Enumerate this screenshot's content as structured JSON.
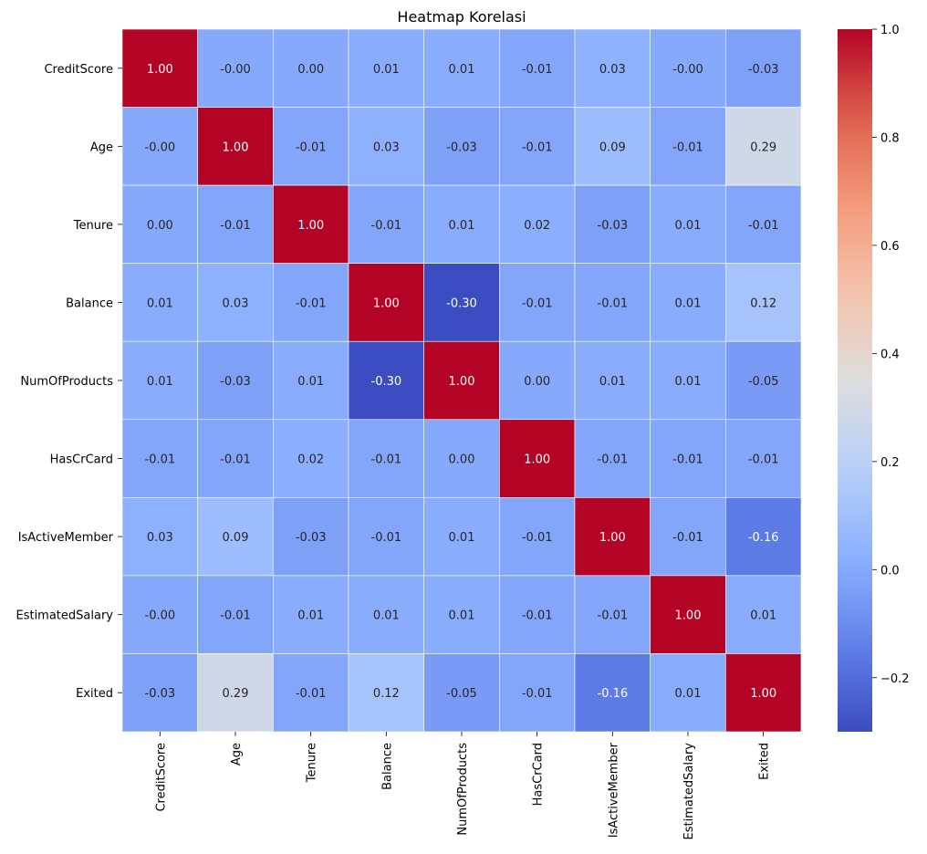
{
  "chart_data": {
    "type": "heatmap",
    "title": "Heatmap Korelasi",
    "colormap": "coolwarm",
    "vmin": -0.3,
    "vmax": 1.0,
    "x_labels": [
      "CreditScore",
      "Age",
      "Tenure",
      "Balance",
      "NumOfProducts",
      "HasCrCard",
      "IsActiveMember",
      "EstimatedSalary",
      "Exited"
    ],
    "y_labels": [
      "CreditScore",
      "Age",
      "Tenure",
      "Balance",
      "NumOfProducts",
      "HasCrCard",
      "IsActiveMember",
      "EstimatedSalary",
      "Exited"
    ],
    "values": [
      [
        1.0,
        -0.0,
        0.0,
        0.01,
        0.01,
        -0.01,
        0.03,
        -0.0,
        -0.03
      ],
      [
        -0.0,
        1.0,
        -0.01,
        0.03,
        -0.03,
        -0.01,
        0.09,
        -0.01,
        0.29
      ],
      [
        0.0,
        -0.01,
        1.0,
        -0.01,
        0.01,
        0.02,
        -0.03,
        0.01,
        -0.01
      ],
      [
        0.01,
        0.03,
        -0.01,
        1.0,
        -0.3,
        -0.01,
        -0.01,
        0.01,
        0.12
      ],
      [
        0.01,
        -0.03,
        0.01,
        -0.3,
        1.0,
        0.0,
        0.01,
        0.01,
        -0.05
      ],
      [
        -0.01,
        -0.01,
        0.02,
        -0.01,
        0.0,
        1.0,
        -0.01,
        -0.01,
        -0.01
      ],
      [
        0.03,
        0.09,
        -0.03,
        -0.01,
        0.01,
        -0.01,
        1.0,
        -0.01,
        -0.16
      ],
      [
        -0.0,
        -0.01,
        0.01,
        0.01,
        0.01,
        -0.01,
        -0.01,
        1.0,
        0.01
      ],
      [
        -0.03,
        0.29,
        -0.01,
        0.12,
        -0.05,
        -0.01,
        -0.16,
        0.01,
        1.0
      ]
    ],
    "value_labels": [
      [
        "1.00",
        "-0.00",
        "0.00",
        "0.01",
        "0.01",
        "-0.01",
        "0.03",
        "-0.00",
        "-0.03"
      ],
      [
        "-0.00",
        "1.00",
        "-0.01",
        "0.03",
        "-0.03",
        "-0.01",
        "0.09",
        "-0.01",
        "0.29"
      ],
      [
        "0.00",
        "-0.01",
        "1.00",
        "-0.01",
        "0.01",
        "0.02",
        "-0.03",
        "0.01",
        "-0.01"
      ],
      [
        "0.01",
        "0.03",
        "-0.01",
        "1.00",
        "-0.30",
        "-0.01",
        "-0.01",
        "0.01",
        "0.12"
      ],
      [
        "0.01",
        "-0.03",
        "0.01",
        "-0.30",
        "1.00",
        "0.00",
        "0.01",
        "0.01",
        "-0.05"
      ],
      [
        "-0.01",
        "-0.01",
        "0.02",
        "-0.01",
        "0.00",
        "1.00",
        "-0.01",
        "-0.01",
        "-0.01"
      ],
      [
        "0.03",
        "0.09",
        "-0.03",
        "-0.01",
        "0.01",
        "-0.01",
        "1.00",
        "-0.01",
        "-0.16"
      ],
      [
        "-0.00",
        "-0.01",
        "0.01",
        "0.01",
        "0.01",
        "-0.01",
        "-0.01",
        "1.00",
        "0.01"
      ],
      [
        "-0.03",
        "0.29",
        "-0.01",
        "0.12",
        "-0.05",
        "-0.01",
        "-0.16",
        "0.01",
        "1.00"
      ]
    ],
    "colorbar": {
      "ticks": [
        -0.2,
        0.0,
        0.2,
        0.4,
        0.6,
        0.8,
        1.0
      ],
      "tick_labels": [
        "−0.2",
        "0.0",
        "0.2",
        "0.4",
        "0.6",
        "0.8",
        "1.0"
      ]
    },
    "grid": true,
    "legend": "colorbar-right"
  }
}
